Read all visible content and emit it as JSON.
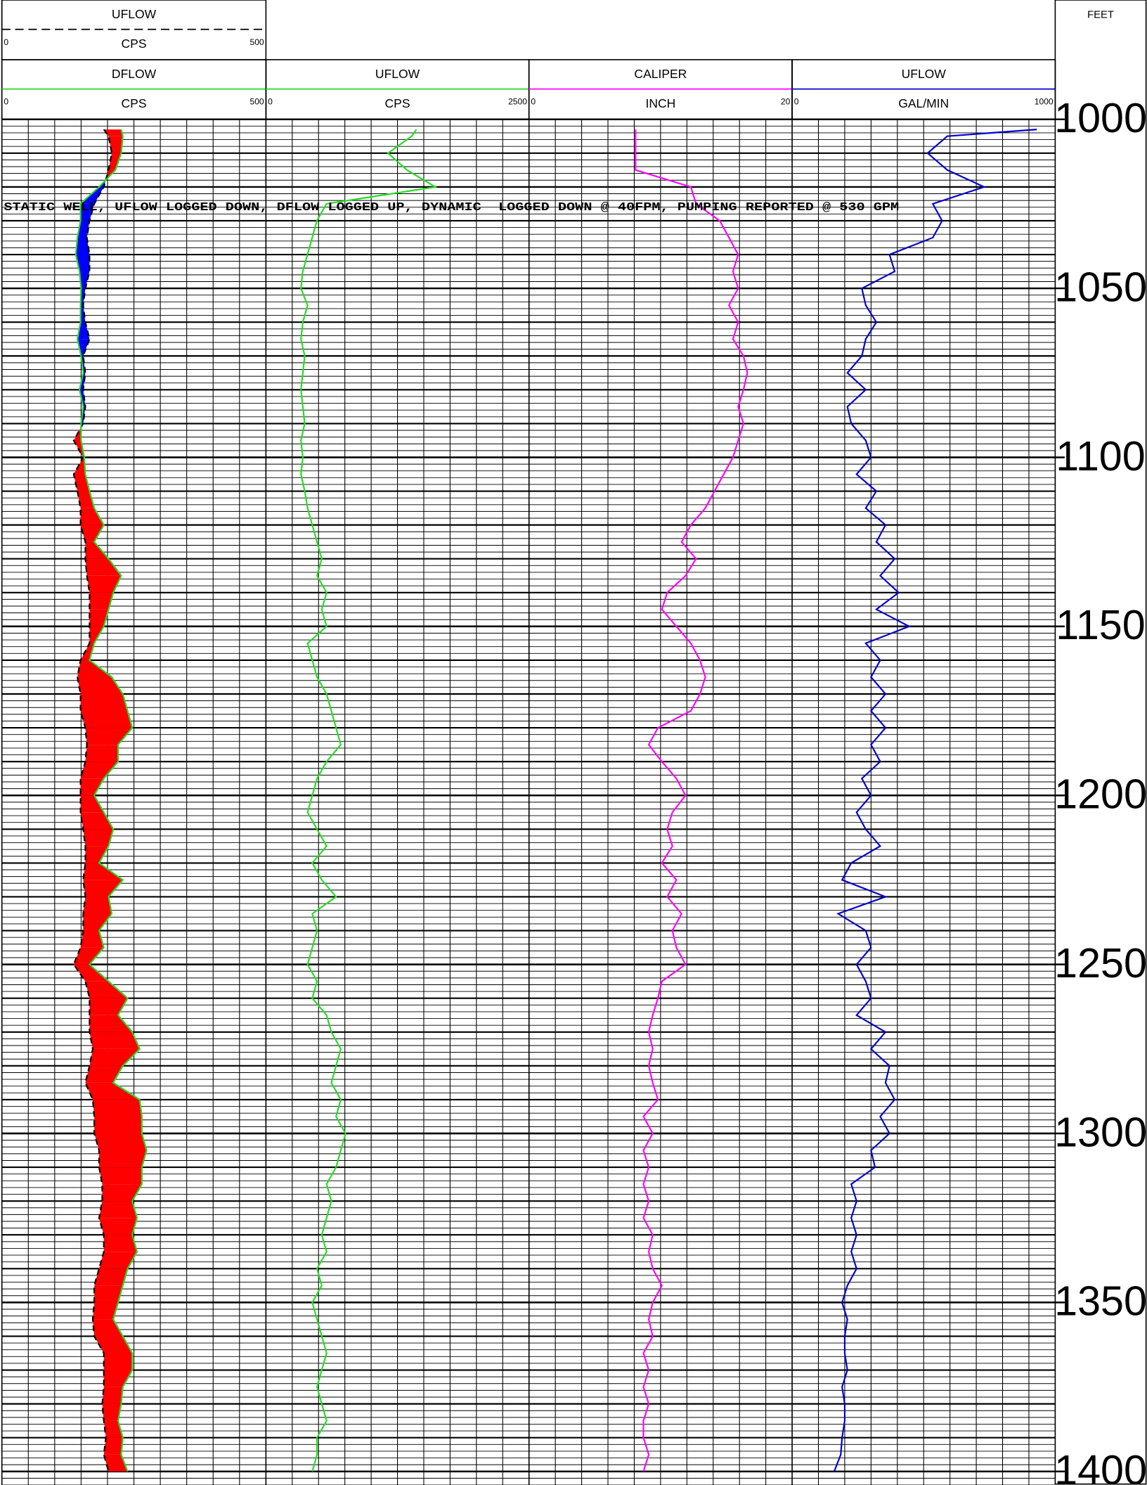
{
  "chart_data": {
    "type": "well_log",
    "depth_label": "FEET",
    "annotation": "STATIC WELL, UFLOW LOGGED DOWN, DFLOW LOGGED UP, DYNAMIC  LOGGED DOWN @ 40FPM, PUMPING REPORTED @ 530 GPM",
    "ylim": [
      1000,
      1404
    ],
    "yticks": [
      1000,
      1050,
      1100,
      1150,
      1200,
      1250,
      1300,
      1350,
      1400
    ],
    "grid": true,
    "fill_colors": [
      "#ff0000",
      "#0000ff"
    ],
    "x": [
      1003,
      1005,
      1010,
      1015,
      1020,
      1025,
      1030,
      1035,
      1040,
      1045,
      1050,
      1055,
      1060,
      1065,
      1070,
      1075,
      1080,
      1085,
      1090,
      1095,
      1100,
      1105,
      1110,
      1115,
      1120,
      1125,
      1130,
      1135,
      1140,
      1145,
      1150,
      1155,
      1160,
      1165,
      1170,
      1175,
      1180,
      1185,
      1190,
      1195,
      1200,
      1205,
      1210,
      1215,
      1220,
      1225,
      1230,
      1235,
      1240,
      1245,
      1250,
      1255,
      1260,
      1265,
      1270,
      1275,
      1280,
      1285,
      1290,
      1295,
      1300,
      1305,
      1310,
      1315,
      1320,
      1325,
      1330,
      1335,
      1340,
      1345,
      1350,
      1355,
      1360,
      1365,
      1370,
      1375,
      1380,
      1385,
      1390,
      1395,
      1400
    ],
    "series": [
      {
        "name": "UFLOW",
        "unit": "CPS",
        "track": 0,
        "color": "#000000",
        "dashed": true,
        "xlim": [
          0,
          500
        ],
        "values": [
          193,
          202,
          208,
          202,
          193,
          175,
          166,
          161,
          166,
          166,
          158,
          154,
          158,
          166,
          154,
          158,
          154,
          158,
          154,
          136,
          154,
          136,
          143,
          149,
          149,
          158,
          158,
          161,
          166,
          166,
          166,
          166,
          149,
          143,
          149,
          149,
          158,
          161,
          158,
          149,
          149,
          149,
          154,
          158,
          158,
          154,
          158,
          154,
          154,
          149,
          136,
          158,
          166,
          166,
          166,
          172,
          166,
          158,
          172,
          175,
          175,
          184,
          184,
          190,
          190,
          184,
          193,
          193,
          184,
          175,
          175,
          172,
          175,
          193,
          193,
          193,
          190,
          193,
          197,
          193,
          202
        ]
      },
      {
        "name": "DFLOW",
        "unit": "CPS",
        "track": 0,
        "color": "#22dd22",
        "dashed": false,
        "xlim": [
          0,
          500
        ],
        "values": [
          226,
          229,
          226,
          215,
          184,
          149,
          149,
          143,
          140,
          147,
          150,
          149,
          149,
          143,
          150,
          154,
          147,
          154,
          150,
          150,
          156,
          158,
          166,
          175,
          193,
          175,
          202,
          226,
          211,
          202,
          193,
          175,
          166,
          208,
          229,
          238,
          247,
          220,
          220,
          193,
          175,
          193,
          211,
          202,
          184,
          229,
          202,
          208,
          184,
          193,
          166,
          202,
          238,
          220,
          247,
          261,
          229,
          211,
          261,
          265,
          265,
          274,
          265,
          265,
          247,
          256,
          247,
          256,
          238,
          229,
          220,
          211,
          229,
          247,
          247,
          229,
          226,
          220,
          229,
          226,
          238
        ]
      },
      {
        "name": "UFLOW",
        "unit": "CPS",
        "track": 1,
        "color": "#22dd22",
        "dashed": false,
        "xlim": [
          0,
          2500
        ],
        "values": [
          1430,
          1385,
          1160,
          1340,
          1610,
          575,
          485,
          440,
          395,
          350,
          333,
          396,
          351,
          333,
          369,
          351,
          333,
          351,
          369,
          333,
          351,
          333,
          369,
          396,
          441,
          486,
          531,
          486,
          576,
          531,
          576,
          396,
          441,
          486,
          576,
          621,
          666,
          711,
          576,
          486,
          441,
          396,
          486,
          576,
          441,
          531,
          666,
          441,
          486,
          441,
          396,
          486,
          441,
          576,
          621,
          711,
          666,
          621,
          711,
          666,
          756,
          711,
          666,
          576,
          621,
          576,
          531,
          576,
          486,
          531,
          441,
          486,
          531,
          576,
          531,
          486,
          531,
          576,
          486,
          486,
          441
        ]
      },
      {
        "name": "CALIPER",
        "unit": "INCH",
        "track": 2,
        "color": "#ff00ff",
        "dashed": false,
        "xlim": [
          0,
          20
        ],
        "values": [
          8.1,
          8.1,
          8.1,
          8.1,
          12.3,
          12.7,
          14.5,
          15.2,
          15.9,
          15.5,
          15.9,
          15.2,
          15.9,
          15.5,
          16.3,
          16.6,
          16.3,
          15.9,
          16.3,
          15.9,
          15.5,
          14.8,
          14.1,
          13.4,
          12.3,
          11.6,
          12.7,
          11.9,
          10.5,
          10.1,
          11.2,
          12.3,
          13.0,
          13.4,
          13.0,
          12.3,
          9.8,
          9.1,
          10.1,
          11.2,
          11.9,
          10.9,
          10.5,
          10.9,
          10.1,
          11.2,
          10.5,
          11.6,
          10.9,
          11.2,
          11.9,
          10.1,
          9.8,
          9.4,
          9.1,
          9.4,
          9.1,
          9.4,
          9.8,
          8.7,
          9.4,
          8.7,
          9.1,
          8.7,
          9.1,
          8.7,
          9.4,
          9.1,
          9.4,
          10.1,
          9.4,
          9.1,
          9.4,
          8.7,
          9.1,
          8.7,
          9.1,
          8.7,
          8.7,
          9.1,
          8.7
        ]
      },
      {
        "name": "UFLOW",
        "unit": "GAL/MIN",
        "track": 3,
        "color": "#0000cc",
        "dashed": false,
        "xlim": [
          0,
          1000
        ],
        "values": [
          930,
          590,
          515,
          590,
          730,
          535,
          570,
          535,
          370,
          390,
          265,
          280,
          320,
          280,
          265,
          210,
          280,
          210,
          225,
          280,
          300,
          245,
          320,
          280,
          355,
          320,
          390,
          335,
          405,
          320,
          445,
          280,
          335,
          300,
          355,
          300,
          355,
          300,
          335,
          265,
          300,
          245,
          280,
          335,
          225,
          190,
          355,
          175,
          280,
          300,
          245,
          280,
          300,
          245,
          355,
          300,
          370,
          355,
          390,
          335,
          370,
          300,
          315,
          225,
          245,
          225,
          245,
          225,
          245,
          210,
          190,
          210,
          200,
          200,
          210,
          190,
          200,
          200,
          190,
          185,
          160
        ]
      }
    ]
  }
}
